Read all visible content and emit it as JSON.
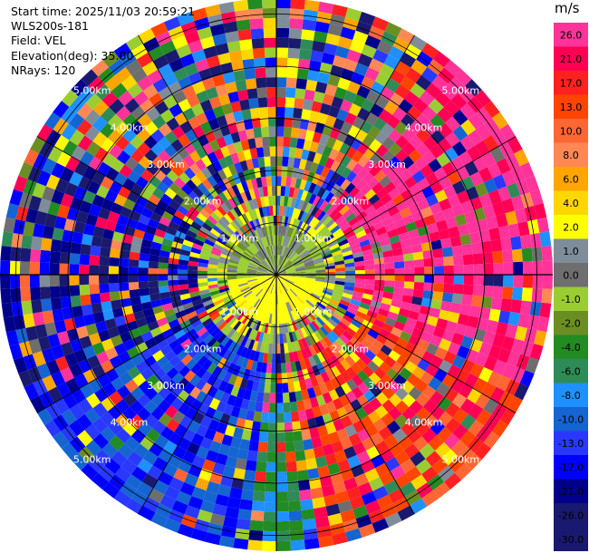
{
  "info": {
    "start_time": "Start time: 2025/11/03 20:59:21",
    "site": "WLS200s-181",
    "field": "Field: VEL",
    "elevation": "Elevation(deg): 35.00",
    "nrays": "NRays: 120"
  },
  "colorbar": {
    "unit": "m/s",
    "bins": [
      {
        "label": "26.0",
        "color": "#ff3399"
      },
      {
        "label": "21.0",
        "color": "#ff0055"
      },
      {
        "label": "17.0",
        "color": "#ff2020"
      },
      {
        "label": "13.0",
        "color": "#ff4400"
      },
      {
        "label": "10.0",
        "color": "#ff6633"
      },
      {
        "label": "8.0",
        "color": "#ff8855"
      },
      {
        "label": "6.0",
        "color": "#ffa500"
      },
      {
        "label": "4.0",
        "color": "#ffd700"
      },
      {
        "label": "2.0",
        "color": "#ffff00"
      },
      {
        "label": "1.0",
        "color": "#7f8c9a"
      },
      {
        "label": "0.0",
        "color": "#6e6e6e"
      },
      {
        "label": "-1.0",
        "color": "#9acd32"
      },
      {
        "label": "-2.0",
        "color": "#6b8e23"
      },
      {
        "label": "-4.0",
        "color": "#228b22"
      },
      {
        "label": "-6.0",
        "color": "#2e8b57"
      },
      {
        "label": "-8.0",
        "color": "#1e90ff"
      },
      {
        "label": "-10.0",
        "color": "#1464d2"
      },
      {
        "label": "-13.0",
        "color": "#2838ff"
      },
      {
        "label": "-17.0",
        "color": "#0000ff"
      },
      {
        "label": "-21.0",
        "color": "#00008b"
      },
      {
        "label": "-26.0",
        "color": "#191970"
      },
      {
        "label": "-30.0",
        "color": "#191970"
      }
    ]
  },
  "chart_data": {
    "type": "heatmap",
    "projection": "polar PPI",
    "field": "VEL",
    "units": "m/s",
    "nrays": 120,
    "elevation_deg": 35.0,
    "range_rings_km": [
      1.0,
      2.0,
      3.0,
      4.0,
      5.0
    ],
    "range_ring_labels": [
      "1.00km",
      "2.00km",
      "3.00km",
      "4.00km",
      "5.00km"
    ],
    "gates_visible_km": [
      0.0,
      5.3
    ],
    "grid": true,
    "azimuth_lines_deg": [
      0,
      30,
      60,
      90,
      120,
      150,
      180,
      210,
      240,
      270,
      300,
      330
    ],
    "colorbar_range": [
      -30.0,
      26.0
    ],
    "sectors": [
      {
        "azimuth_deg": [
          0,
          360
        ],
        "range_km": [
          0,
          1.0
        ],
        "velocity": "about -1 to 0 (grey / olive)"
      },
      {
        "azimuth_deg": [
          90,
          270
        ],
        "range_km": [
          0,
          1.0
        ],
        "velocity": "about 2 (yellow)"
      },
      {
        "azimuth_deg": [
          0,
          360
        ],
        "range_km": [
          1.0,
          1.6
        ],
        "velocity": "mixed, mostly 1 to 2"
      },
      {
        "azimuth_deg": [
          40,
          130
        ],
        "range_km": [
          1.6,
          5.3
        ],
        "velocity": "about 21 to 26 (pink / red)"
      },
      {
        "azimuth_deg": [
          100,
          170
        ],
        "range_km": [
          1.6,
          5.3
        ],
        "velocity": "about 10 to 17 (red / orange)"
      },
      {
        "azimuth_deg": [
          180,
          240
        ],
        "range_km": [
          1.6,
          5.3
        ],
        "velocity": "about -13 to -17 (blue)"
      },
      {
        "azimuth_deg": [
          160,
          185
        ],
        "range_km": [
          2.5,
          5.3
        ],
        "velocity": "about -6 to -10 (green / blue)"
      },
      {
        "azimuth_deg": [
          240,
          300
        ],
        "range_km": [
          1.6,
          5.3
        ],
        "velocity": "noise, mostly -13 to -30 (blue / navy)"
      },
      {
        "azimuth_deg": [
          300,
          40
        ],
        "range_km": [
          1.6,
          5.3
        ],
        "velocity": "noise, mixed (random)"
      }
    ]
  }
}
